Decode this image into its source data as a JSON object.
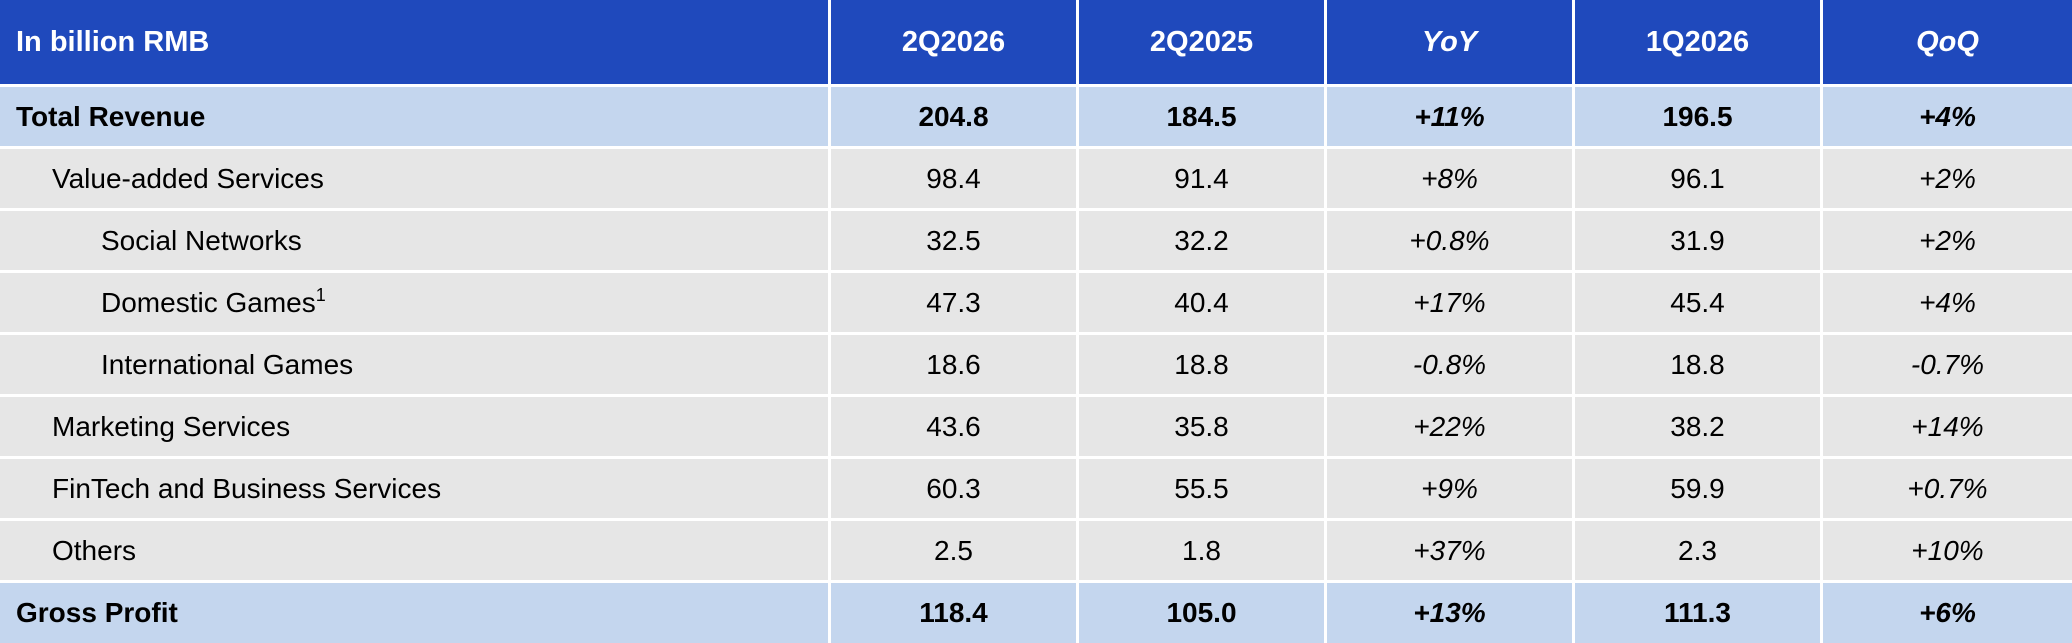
{
  "table": {
    "header": {
      "label": "In billion RMB",
      "col1": "2Q2026",
      "col2": "2Q2025",
      "col3": "YoY",
      "col4": "1Q2026",
      "col5": "QoQ"
    },
    "rows": [
      {
        "label": "Total Revenue",
        "note": "",
        "v1": "204.8",
        "v2": "184.5",
        "yoy": "+11%",
        "v4": "196.5",
        "qoq": "+4%"
      },
      {
        "label": "Value-added Services",
        "note": "",
        "v1": "98.4",
        "v2": "91.4",
        "yoy": "+8%",
        "v4": "96.1",
        "qoq": "+2%"
      },
      {
        "label": "Social Networks",
        "note": "",
        "v1": "32.5",
        "v2": "32.2",
        "yoy": "+0.8%",
        "v4": "31.9",
        "qoq": "+2%"
      },
      {
        "label": "Domestic Games",
        "note": "1",
        "v1": "47.3",
        "v2": "40.4",
        "yoy": "+17%",
        "v4": "45.4",
        "qoq": "+4%"
      },
      {
        "label": "International Games",
        "note": "",
        "v1": "18.6",
        "v2": "18.8",
        "yoy": "-0.8%",
        "v4": "18.8",
        "qoq": "-0.7%"
      },
      {
        "label": "Marketing Services",
        "note": "",
        "v1": "43.6",
        "v2": "35.8",
        "yoy": "+22%",
        "v4": "38.2",
        "qoq": "+14%"
      },
      {
        "label": "FinTech and Business Services",
        "note": "",
        "v1": "60.3",
        "v2": "55.5",
        "yoy": "+9%",
        "v4": "59.9",
        "qoq": "+0.7%"
      },
      {
        "label": "Others",
        "note": "",
        "v1": "2.5",
        "v2": "1.8",
        "yoy": "+37%",
        "v4": "2.3",
        "qoq": "+10%"
      },
      {
        "label": "Gross Profit",
        "note": "",
        "v1": "118.4",
        "v2": "105.0",
        "yoy": "+13%",
        "v4": "111.3",
        "qoq": "+6%"
      }
    ]
  },
  "colors": {
    "header_bg": "#1f49bc",
    "total_row_bg": "#c4d6ee",
    "row_bg": "#e6e6e6"
  }
}
